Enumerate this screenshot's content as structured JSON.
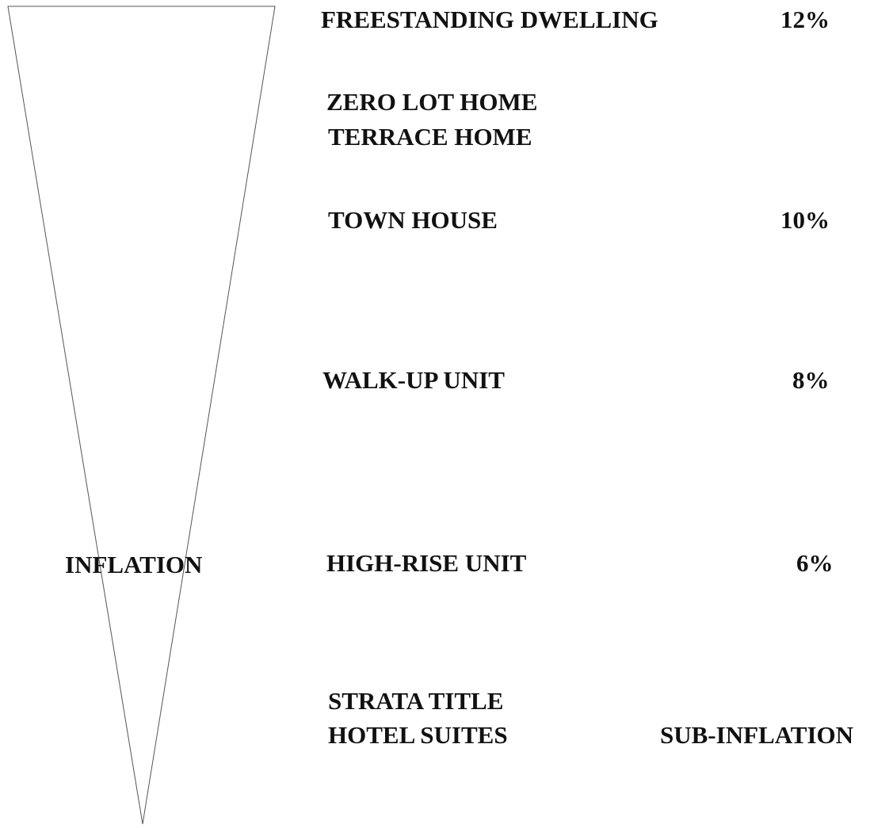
{
  "axis_label": "INFLATION",
  "items": [
    {
      "lines": [
        "FREESTANDING DWELLING"
      ],
      "rate": "12%"
    },
    {
      "lines": [
        "ZERO LOT HOME",
        "TERRACE HOME"
      ]
    },
    {
      "lines": [
        "TOWN HOUSE"
      ],
      "rate": "10%"
    },
    {
      "lines": [
        "WALK-UP UNIT"
      ],
      "rate": "8%"
    },
    {
      "lines": [
        "HIGH-RISE UNIT"
      ],
      "rate": "6%"
    },
    {
      "lines": [
        "STRATA TITLE",
        "HOTEL SUITES"
      ],
      "rate": "SUB-INFLATION"
    }
  ]
}
